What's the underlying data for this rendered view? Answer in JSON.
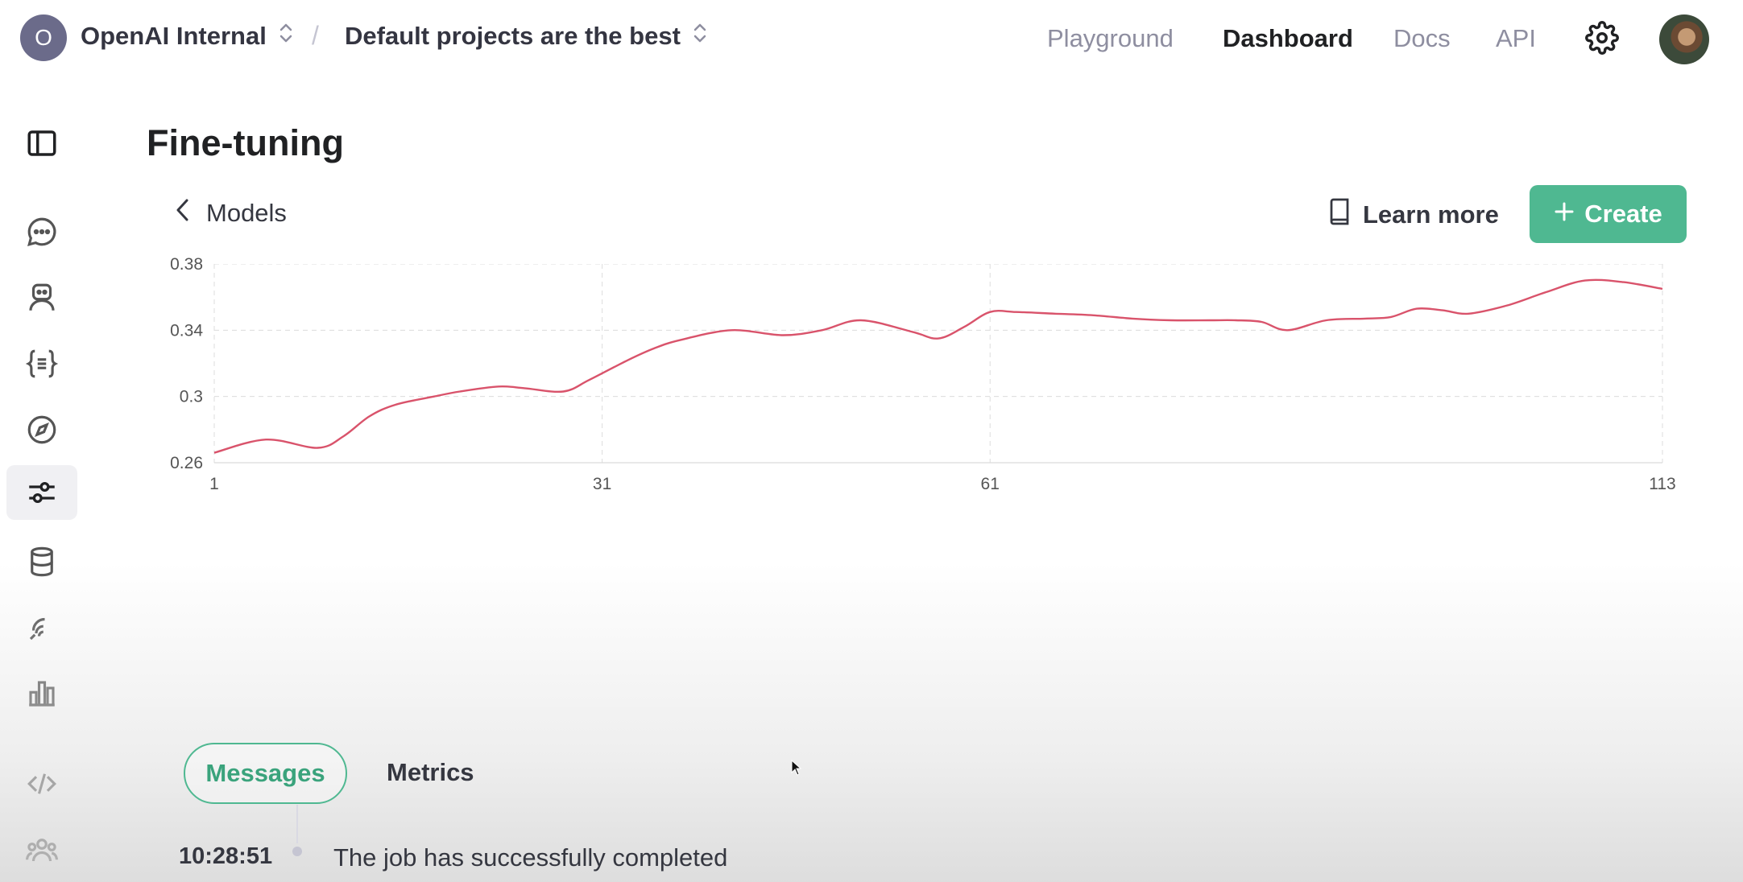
{
  "header": {
    "org_initial": "O",
    "org_name": "OpenAI Internal",
    "separator": "/",
    "project_name": "Default projects are the best",
    "nav": [
      {
        "label": "Playground",
        "active": false
      },
      {
        "label": "Dashboard",
        "active": true
      },
      {
        "label": "Docs",
        "active": false
      },
      {
        "label": "API",
        "active": false
      }
    ],
    "settings_icon": "gear-icon",
    "avatar": "user-avatar"
  },
  "sidebar": {
    "items": [
      {
        "icon": "panel-toggle-icon"
      },
      {
        "icon": "chat-icon"
      },
      {
        "icon": "assistant-bot-icon"
      },
      {
        "icon": "curly-braces-icon"
      },
      {
        "icon": "compass-icon"
      },
      {
        "icon": "sliders-icon",
        "active": true
      },
      {
        "icon": "database-icon"
      },
      {
        "icon": "audio-waves-icon"
      },
      {
        "icon": "bar-chart-icon"
      },
      {
        "icon": "code-icon"
      },
      {
        "icon": "team-icon"
      }
    ]
  },
  "main": {
    "title": "Fine-tuning",
    "back_label": "Models",
    "learn_more_label": "Learn more",
    "create_label": "Create"
  },
  "chart_data": {
    "type": "line",
    "title": "",
    "xlabel": "",
    "ylabel": "",
    "x_ticks": [
      "1",
      "31",
      "61",
      "113"
    ],
    "y_ticks": [
      "0.26",
      "0.3",
      "0.34",
      "0.38"
    ],
    "xlim": [
      1,
      113
    ],
    "ylim": [
      0.26,
      0.38
    ],
    "grid": true,
    "color": "#d9536b",
    "series": [
      {
        "name": "",
        "x": [
          1,
          5,
          9,
          11,
          13,
          15,
          18,
          20,
          23,
          25,
          28,
          30,
          33,
          35,
          37,
          41,
          45,
          48,
          51,
          55,
          57,
          59,
          61,
          63,
          66,
          69,
          72,
          75,
          78,
          80,
          82,
          84,
          87,
          90,
          92,
          94,
          96,
          98,
          101,
          104,
          107,
          110,
          113
        ],
        "y": [
          0.266,
          0.274,
          0.269,
          0.276,
          0.288,
          0.295,
          0.3,
          0.303,
          0.306,
          0.305,
          0.303,
          0.31,
          0.322,
          0.329,
          0.334,
          0.34,
          0.337,
          0.34,
          0.346,
          0.339,
          0.335,
          0.342,
          0.351,
          0.351,
          0.35,
          0.349,
          0.347,
          0.346,
          0.346,
          0.346,
          0.345,
          0.34,
          0.346,
          0.347,
          0.348,
          0.353,
          0.352,
          0.35,
          0.355,
          0.363,
          0.37,
          0.369,
          0.365
        ]
      }
    ]
  },
  "tabs": {
    "messages": "Messages",
    "metrics": "Metrics"
  },
  "messages": [
    {
      "time": "10:28:51",
      "text": "The job has successfully completed"
    }
  ]
}
